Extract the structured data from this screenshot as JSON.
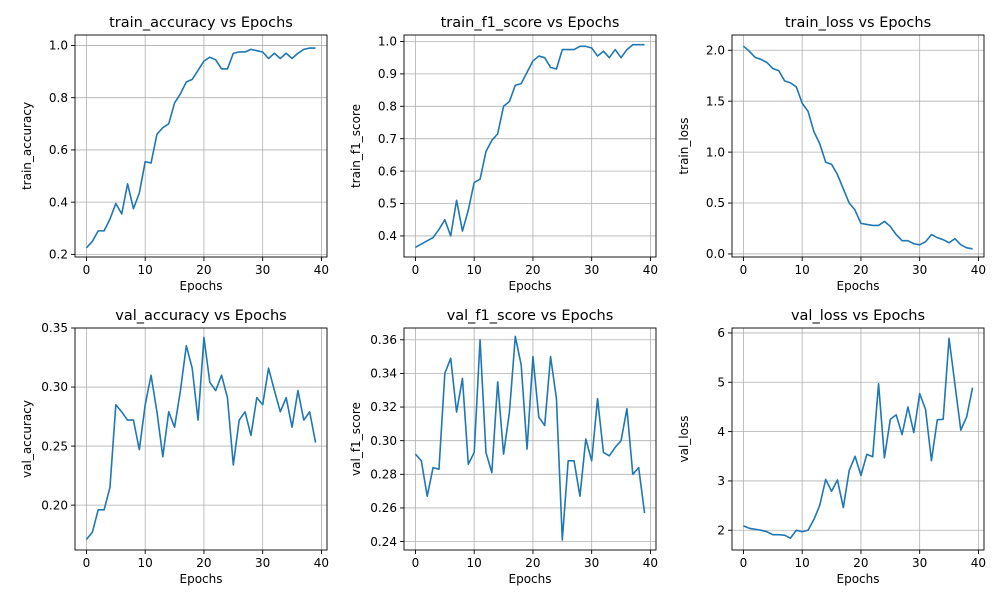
{
  "chart_data": [
    {
      "type": "line",
      "title": "train_accuracy vs Epochs",
      "xlabel": "Epochs",
      "ylabel": "train_accuracy",
      "grid": true,
      "xlim": [
        -1.95,
        40.95
      ],
      "ylim": [
        0.19,
        1.04
      ],
      "xticks": [
        0,
        10,
        20,
        30,
        40
      ],
      "xtick_labels": [
        "0",
        "10",
        "20",
        "30",
        "40"
      ],
      "yticks": [
        0.2,
        0.4,
        0.6,
        0.8,
        1.0
      ],
      "ytick_labels": [
        "0.2",
        "0.4",
        "0.6",
        "0.8",
        "1.0"
      ],
      "color": "#1f77b4",
      "x": [
        0,
        1,
        2,
        3,
        4,
        5,
        6,
        7,
        8,
        9,
        10,
        11,
        12,
        13,
        14,
        15,
        16,
        17,
        18,
        19,
        20,
        21,
        22,
        23,
        24,
        25,
        26,
        27,
        28,
        29,
        30,
        31,
        32,
        33,
        34,
        35,
        36,
        37,
        38,
        39
      ],
      "y": [
        0.225,
        0.25,
        0.29,
        0.29,
        0.335,
        0.395,
        0.355,
        0.47,
        0.375,
        0.435,
        0.555,
        0.55,
        0.66,
        0.685,
        0.7,
        0.78,
        0.815,
        0.86,
        0.87,
        0.905,
        0.94,
        0.955,
        0.945,
        0.91,
        0.91,
        0.97,
        0.975,
        0.975,
        0.985,
        0.98,
        0.975,
        0.95,
        0.97,
        0.95,
        0.97,
        0.95,
        0.97,
        0.985,
        0.99,
        0.99
      ]
    },
    {
      "type": "line",
      "title": "train_f1_score vs Epochs",
      "xlabel": "Epochs",
      "ylabel": "train_f1_score",
      "grid": true,
      "xlim": [
        -1.95,
        40.95
      ],
      "ylim": [
        0.335,
        1.02
      ],
      "xticks": [
        0,
        10,
        20,
        30,
        40
      ],
      "xtick_labels": [
        "0",
        "10",
        "20",
        "30",
        "40"
      ],
      "yticks": [
        0.4,
        0.5,
        0.6,
        0.7,
        0.8,
        0.9,
        1.0
      ],
      "ytick_labels": [
        "0.4",
        "0.5",
        "0.6",
        "0.7",
        "0.8",
        "0.9",
        "1.0"
      ],
      "color": "#1f77b4",
      "x": [
        0,
        1,
        2,
        3,
        4,
        5,
        6,
        7,
        8,
        9,
        10,
        11,
        12,
        13,
        14,
        15,
        16,
        17,
        18,
        19,
        20,
        21,
        22,
        23,
        24,
        25,
        26,
        27,
        28,
        29,
        30,
        31,
        32,
        33,
        34,
        35,
        36,
        37,
        38,
        39
      ],
      "y": [
        0.365,
        0.375,
        0.385,
        0.395,
        0.42,
        0.45,
        0.4,
        0.51,
        0.415,
        0.48,
        0.565,
        0.575,
        0.66,
        0.695,
        0.715,
        0.8,
        0.815,
        0.865,
        0.87,
        0.905,
        0.94,
        0.955,
        0.95,
        0.92,
        0.915,
        0.975,
        0.975,
        0.975,
        0.985,
        0.985,
        0.98,
        0.955,
        0.97,
        0.95,
        0.975,
        0.95,
        0.975,
        0.99,
        0.99,
        0.99
      ]
    },
    {
      "type": "line",
      "title": "train_loss vs Epochs",
      "xlabel": "Epochs",
      "ylabel": "train_loss",
      "grid": true,
      "xlim": [
        -1.95,
        40.95
      ],
      "ylim": [
        -0.03,
        2.15
      ],
      "xticks": [
        0,
        10,
        20,
        30,
        40
      ],
      "xtick_labels": [
        "0",
        "10",
        "20",
        "30",
        "40"
      ],
      "yticks": [
        0.0,
        0.5,
        1.0,
        1.5,
        2.0
      ],
      "ytick_labels": [
        "0.0",
        "0.5",
        "1.0",
        "1.5",
        "2.0"
      ],
      "color": "#1f77b4",
      "x": [
        0,
        1,
        2,
        3,
        4,
        5,
        6,
        7,
        8,
        9,
        10,
        11,
        12,
        13,
        14,
        15,
        16,
        17,
        18,
        19,
        20,
        21,
        22,
        23,
        24,
        25,
        26,
        27,
        28,
        29,
        30,
        31,
        32,
        33,
        34,
        35,
        36,
        37,
        38,
        39
      ],
      "y": [
        2.04,
        1.99,
        1.93,
        1.91,
        1.88,
        1.82,
        1.8,
        1.7,
        1.68,
        1.64,
        1.48,
        1.4,
        1.2,
        1.08,
        0.9,
        0.88,
        0.78,
        0.64,
        0.5,
        0.43,
        0.3,
        0.29,
        0.28,
        0.28,
        0.32,
        0.27,
        0.19,
        0.13,
        0.13,
        0.1,
        0.09,
        0.12,
        0.19,
        0.16,
        0.14,
        0.11,
        0.15,
        0.09,
        0.06,
        0.05
      ]
    },
    {
      "type": "line",
      "title": "val_accuracy vs Epochs",
      "xlabel": "Epochs",
      "ylabel": "val_accuracy",
      "grid": true,
      "xlim": [
        -1.95,
        40.95
      ],
      "ylim": [
        0.162,
        0.35
      ],
      "xticks": [
        0,
        10,
        20,
        30,
        40
      ],
      "xtick_labels": [
        "0",
        "10",
        "20",
        "30",
        "40"
      ],
      "yticks": [
        0.2,
        0.25,
        0.3,
        0.35
      ],
      "ytick_labels": [
        "0.20",
        "0.25",
        "0.30",
        "0.35"
      ],
      "color": "#1f77b4",
      "x": [
        0,
        1,
        2,
        3,
        4,
        5,
        6,
        7,
        8,
        9,
        10,
        11,
        12,
        13,
        14,
        15,
        16,
        17,
        18,
        19,
        20,
        21,
        22,
        23,
        24,
        25,
        26,
        27,
        28,
        29,
        30,
        31,
        32,
        33,
        34,
        35,
        36,
        37,
        38,
        39
      ],
      "y": [
        0.171,
        0.177,
        0.196,
        0.196,
        0.215,
        0.285,
        0.279,
        0.272,
        0.272,
        0.247,
        0.285,
        0.31,
        0.279,
        0.241,
        0.279,
        0.266,
        0.297,
        0.335,
        0.316,
        0.272,
        0.342,
        0.304,
        0.297,
        0.31,
        0.291,
        0.234,
        0.272,
        0.279,
        0.259,
        0.291,
        0.285,
        0.316,
        0.297,
        0.279,
        0.291,
        0.266,
        0.297,
        0.272,
        0.279,
        0.253
      ]
    },
    {
      "type": "line",
      "title": "val_f1_score vs Epochs",
      "xlabel": "Epochs",
      "ylabel": "val_f1_score",
      "grid": true,
      "xlim": [
        -1.95,
        40.95
      ],
      "ylim": [
        0.235,
        0.367
      ],
      "xticks": [
        0,
        10,
        20,
        30,
        40
      ],
      "xtick_labels": [
        "0",
        "10",
        "20",
        "30",
        "40"
      ],
      "yticks": [
        0.24,
        0.26,
        0.28,
        0.3,
        0.32,
        0.34,
        0.36
      ],
      "ytick_labels": [
        "0.24",
        "0.26",
        "0.28",
        "0.30",
        "0.32",
        "0.34",
        "0.36"
      ],
      "color": "#1f77b4",
      "x": [
        0,
        1,
        2,
        3,
        4,
        5,
        6,
        7,
        8,
        9,
        10,
        11,
        12,
        13,
        14,
        15,
        16,
        17,
        18,
        19,
        20,
        21,
        22,
        23,
        24,
        25,
        26,
        27,
        28,
        29,
        30,
        31,
        32,
        33,
        34,
        35,
        36,
        37,
        38,
        39
      ],
      "y": [
        0.292,
        0.288,
        0.267,
        0.284,
        0.283,
        0.34,
        0.349,
        0.317,
        0.337,
        0.286,
        0.293,
        0.36,
        0.293,
        0.281,
        0.335,
        0.292,
        0.317,
        0.362,
        0.345,
        0.295,
        0.35,
        0.314,
        0.309,
        0.35,
        0.325,
        0.241,
        0.288,
        0.288,
        0.267,
        0.301,
        0.288,
        0.325,
        0.293,
        0.291,
        0.296,
        0.3,
        0.319,
        0.28,
        0.284,
        0.257
      ]
    },
    {
      "type": "line",
      "title": "val_loss vs Epochs",
      "xlabel": "Epochs",
      "ylabel": "val_loss",
      "grid": true,
      "xlim": [
        -1.95,
        40.95
      ],
      "ylim": [
        1.6,
        6.1
      ],
      "xticks": [
        0,
        10,
        20,
        30,
        40
      ],
      "xtick_labels": [
        "0",
        "10",
        "20",
        "30",
        "40"
      ],
      "yticks": [
        2,
        3,
        4,
        5,
        6
      ],
      "ytick_labels": [
        "2",
        "3",
        "4",
        "5",
        "6"
      ],
      "color": "#1f77b4",
      "x": [
        0,
        1,
        2,
        3,
        4,
        5,
        6,
        7,
        8,
        9,
        10,
        11,
        12,
        13,
        14,
        15,
        16,
        17,
        18,
        19,
        20,
        21,
        22,
        23,
        24,
        25,
        26,
        27,
        28,
        29,
        30,
        31,
        32,
        33,
        34,
        35,
        36,
        37,
        38,
        39
      ],
      "y": [
        2.09,
        2.04,
        2.02,
        2.0,
        1.97,
        1.91,
        1.91,
        1.9,
        1.84,
        2.0,
        1.97,
        2.0,
        2.22,
        2.51,
        3.03,
        2.79,
        3.02,
        2.46,
        3.21,
        3.5,
        3.11,
        3.54,
        3.49,
        4.97,
        3.47,
        4.25,
        4.34,
        3.94,
        4.5,
        3.98,
        4.77,
        4.45,
        3.41,
        4.24,
        4.25,
        5.89,
        4.96,
        4.03,
        4.3,
        4.89
      ]
    }
  ]
}
